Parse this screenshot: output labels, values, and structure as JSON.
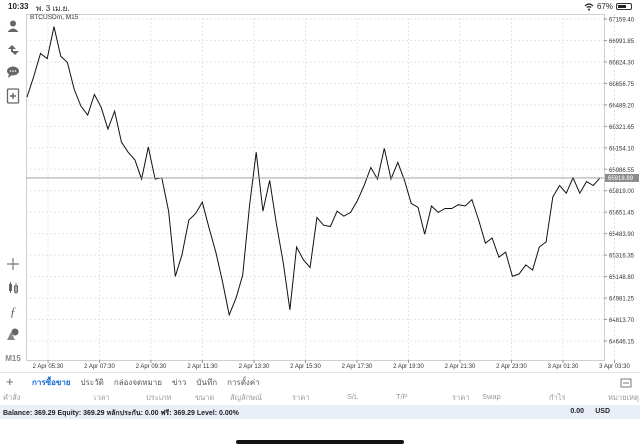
{
  "status": {
    "time": "10:33",
    "date": "พ. 3 เม.ย.",
    "battery": "67%",
    "battery_level": 0.67
  },
  "chart": {
    "symbol": "BTCUSDm, M15"
  },
  "chart_data": {
    "type": "line",
    "series": [
      {
        "values": [
          66550,
          66710,
          66890,
          66850,
          67100,
          66870,
          66820,
          66610,
          66480,
          66410,
          66570,
          66470,
          66300,
          66440,
          66200,
          66120,
          66060,
          65910,
          66160,
          65910,
          65920,
          65660,
          65150,
          65320,
          65590,
          65640,
          65730,
          65530,
          65340,
          65110,
          64850,
          64980,
          65160,
          65700,
          66120,
          65660,
          65900,
          65560,
          65260,
          64890,
          65380,
          65280,
          65220,
          65610,
          65550,
          65540,
          65660,
          65620,
          65650,
          65740,
          65860,
          66000,
          65910,
          66150,
          65910,
          66040,
          65900,
          65720,
          65690,
          65480,
          65700,
          65650,
          65680,
          65680,
          65710,
          65700,
          65750,
          65590,
          65410,
          65450,
          65300,
          65340,
          65150,
          65170,
          65240,
          65200,
          65380,
          65420,
          65770,
          65860,
          65800,
          65920,
          65800,
          65890,
          65860,
          65920
        ]
      }
    ],
    "yticks": [
      "67159.40",
      "66991.85",
      "66824.30",
      "66656.75",
      "66489.20",
      "66321.65",
      "66154.10",
      "65986.55",
      "65819.00",
      "65651.45",
      "65483.90",
      "65316.35",
      "65148.80",
      "64981.25",
      "64813.70",
      "64646.15"
    ],
    "ylim": [
      64600,
      67180
    ],
    "xticks": [
      "2 Apr 05:30",
      "2 Apr 07:30",
      "2 Apr 09:30",
      "2 Apr 11:30",
      "2 Apr 13:30",
      "2 Apr 15:30",
      "2 Apr 17:30",
      "2 Apr 19:30",
      "2 Apr 21:30",
      "2 Apr 23:30",
      "3 Apr 01:30",
      "3 Apr 03:30"
    ],
    "current_price": "65918.89",
    "current_value": 65918.89,
    "grid": true
  },
  "tools": [
    {
      "name": "account-icon"
    },
    {
      "name": "trade-icon"
    },
    {
      "name": "chat-icon"
    },
    {
      "name": "new-order-icon"
    },
    {
      "name": "crosshair-icon"
    },
    {
      "name": "chart-type-icon"
    },
    {
      "name": "indicators-icon"
    },
    {
      "name": "objects-icon"
    },
    {
      "name": "timeframe-label",
      "label": "M15"
    }
  ],
  "tabs": [
    {
      "label": "การซื้อขาย",
      "active": true
    },
    {
      "label": "ประวัติ",
      "active": false
    },
    {
      "label": "กล่องจดหมาย",
      "active": false
    },
    {
      "label": "ข่าว",
      "active": false
    },
    {
      "label": "บันทึก",
      "active": false
    },
    {
      "label": "การตั้งค่า",
      "active": false
    }
  ],
  "columns": [
    "คำสั่ง",
    "เวลา",
    "ประเภท",
    "ขนาด",
    "สัญลักษณ์",
    "ราคา",
    "S/L",
    "T/P",
    "ราคา",
    "Swap",
    "กำไร",
    "หมายเหตุ"
  ],
  "balance": {
    "text": "Balance: 369.29 Equity: 369.29 หลักประกัน: 0.00 ฟรี: 369.29 Level: 0.00%",
    "amount": "0.00",
    "currency": "USD"
  }
}
